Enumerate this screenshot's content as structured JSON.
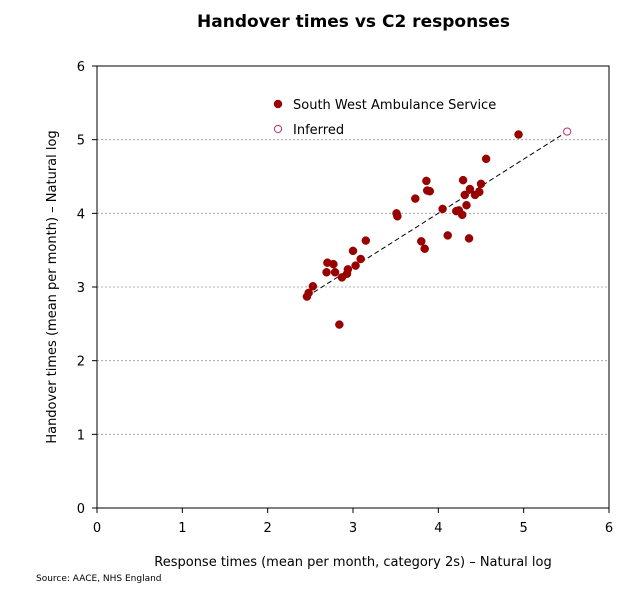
{
  "chart_data": {
    "type": "scatter",
    "title": "Handover times vs C2 responses",
    "xlabel": "Response times (mean per month, category 2s) – Natural log",
    "ylabel": "Handover times (mean per month) – Natural log",
    "xlim": [
      0,
      6
    ],
    "ylim": [
      0,
      6
    ],
    "xticks": [
      "0",
      "1",
      "2",
      "3",
      "4",
      "5",
      "6"
    ],
    "yticks": [
      "0",
      "1",
      "2",
      "3",
      "4",
      "5",
      "6"
    ],
    "grid": "horizontal dashed",
    "legend_position": "top",
    "series": [
      {
        "name": "South West Ambulance Service",
        "marker": "filled-circle",
        "color": "#990000",
        "points": [
          [
            2.46,
            2.87
          ],
          [
            2.48,
            2.92
          ],
          [
            2.53,
            3.01
          ],
          [
            2.69,
            3.2
          ],
          [
            2.7,
            3.33
          ],
          [
            2.77,
            3.31
          ],
          [
            2.79,
            3.2
          ],
          [
            2.84,
            2.49
          ],
          [
            2.87,
            3.13
          ],
          [
            2.93,
            3.18
          ],
          [
            2.94,
            3.24
          ],
          [
            3.0,
            3.49
          ],
          [
            3.03,
            3.29
          ],
          [
            3.09,
            3.38
          ],
          [
            3.15,
            3.63
          ],
          [
            3.51,
            4.0
          ],
          [
            3.52,
            3.96
          ],
          [
            3.73,
            4.2
          ],
          [
            3.8,
            3.62
          ],
          [
            3.84,
            3.52
          ],
          [
            3.86,
            4.44
          ],
          [
            3.87,
            4.31
          ],
          [
            3.9,
            4.3
          ],
          [
            4.05,
            4.06
          ],
          [
            4.11,
            3.7
          ],
          [
            4.21,
            4.03
          ],
          [
            4.24,
            4.04
          ],
          [
            4.28,
            3.98
          ],
          [
            4.29,
            4.45
          ],
          [
            4.31,
            4.25
          ],
          [
            4.33,
            4.11
          ],
          [
            4.36,
            3.66
          ],
          [
            4.37,
            4.33
          ],
          [
            4.43,
            4.25
          ],
          [
            4.48,
            4.29
          ],
          [
            4.5,
            4.4
          ],
          [
            4.56,
            4.74
          ],
          [
            4.94,
            5.07
          ]
        ]
      },
      {
        "name": "Inferred",
        "marker": "open-circle",
        "color": "#c0306a",
        "points": [
          [
            5.51,
            5.11
          ]
        ]
      }
    ],
    "trendline": {
      "style": "dashed",
      "color": "#000000",
      "from": [
        2.46,
        2.87
      ],
      "to": [
        5.51,
        5.11
      ]
    }
  },
  "source": "Source: AACE, NHS England"
}
